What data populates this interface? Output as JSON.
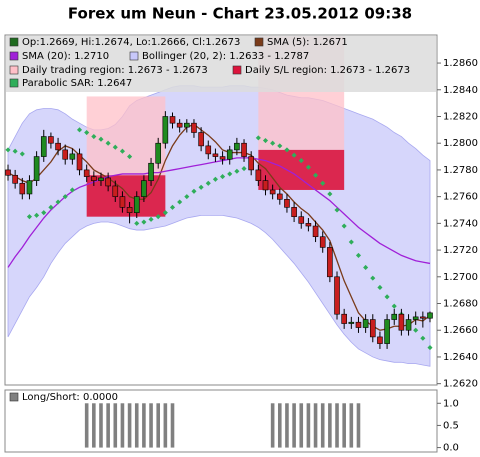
{
  "chart_data": [
    {
      "type": "candlestick",
      "title": "Forex um Neun - Chart 23.05.2012 09:38",
      "ohlc_label": "Op:1.2669, Hi:1.2674, Lo:1.2666, Cl:1.2673",
      "up_color": "#1f8a1f",
      "down_color": "#c81e1e",
      "legend_color": "#1f6a1f",
      "open": [
        1.278,
        1.2776,
        1.277,
        1.2762,
        1.2772,
        1.279,
        1.2805,
        1.28,
        1.2795,
        1.2788,
        1.2792,
        1.278,
        1.2775,
        1.2772,
        1.2774,
        1.2768,
        1.276,
        1.2752,
        1.2748,
        1.276,
        1.2772,
        1.2785,
        1.28,
        1.282,
        1.2815,
        1.2812,
        1.2815,
        1.2808,
        1.2798,
        1.2792,
        1.279,
        1.2788,
        1.2795,
        1.28,
        1.279,
        1.278,
        1.2772,
        1.2765,
        1.2762,
        1.2758,
        1.2752,
        1.2745,
        1.274,
        1.2738,
        1.273,
        1.2722,
        1.27,
        1.2672,
        1.2665,
        1.2666,
        1.2662,
        1.2668,
        1.2655,
        1.265,
        1.2668,
        1.2672,
        1.266,
        1.2668,
        1.267,
        1.2669
      ],
      "high": [
        1.2784,
        1.278,
        1.2774,
        1.2776,
        1.2794,
        1.281,
        1.2808,
        1.2804,
        1.2799,
        1.2796,
        1.2796,
        1.2784,
        1.2779,
        1.2778,
        1.2778,
        1.2772,
        1.2764,
        1.2756,
        1.2764,
        1.2776,
        1.2789,
        1.2804,
        1.2824,
        1.2823,
        1.2818,
        1.2818,
        1.2818,
        1.2812,
        1.2802,
        1.2796,
        1.2794,
        1.2798,
        1.2804,
        1.2803,
        1.2794,
        1.2784,
        1.2776,
        1.2769,
        1.2766,
        1.2762,
        1.2756,
        1.2749,
        1.2744,
        1.2742,
        1.2734,
        1.2726,
        1.2704,
        1.2676,
        1.267,
        1.267,
        1.2672,
        1.2672,
        1.2659,
        1.2672,
        1.2676,
        1.2676,
        1.2672,
        1.2674,
        1.2674,
        1.2674
      ],
      "low": [
        1.2772,
        1.2766,
        1.2758,
        1.2758,
        1.2768,
        1.2786,
        1.2796,
        1.2791,
        1.2784,
        1.2784,
        1.2776,
        1.2771,
        1.2768,
        1.2768,
        1.2764,
        1.2756,
        1.2748,
        1.274,
        1.2744,
        1.2756,
        1.2768,
        1.2781,
        1.2796,
        1.2811,
        1.2808,
        1.2808,
        1.2804,
        1.2794,
        1.2788,
        1.2786,
        1.2784,
        1.2784,
        1.2791,
        1.2786,
        1.2776,
        1.2768,
        1.2761,
        1.2758,
        1.2754,
        1.2748,
        1.2741,
        1.2736,
        1.2734,
        1.2726,
        1.2718,
        1.2696,
        1.2668,
        1.2661,
        1.2661,
        1.2658,
        1.2658,
        1.2651,
        1.2646,
        1.2646,
        1.2664,
        1.2656,
        1.2656,
        1.2664,
        1.2662,
        1.2666
      ],
      "close": [
        1.2776,
        1.277,
        1.2762,
        1.2772,
        1.279,
        1.2805,
        1.28,
        1.2795,
        1.2788,
        1.2792,
        1.278,
        1.2775,
        1.2772,
        1.2774,
        1.2768,
        1.276,
        1.2752,
        1.2748,
        1.276,
        1.2772,
        1.2785,
        1.28,
        1.282,
        1.2815,
        1.2812,
        1.2815,
        1.2808,
        1.2798,
        1.2792,
        1.279,
        1.2788,
        1.2795,
        1.28,
        1.279,
        1.278,
        1.2772,
        1.2765,
        1.2762,
        1.2758,
        1.2752,
        1.2745,
        1.274,
        1.2738,
        1.273,
        1.2722,
        1.27,
        1.2672,
        1.2665,
        1.2666,
        1.2662,
        1.2668,
        1.2655,
        1.265,
        1.2668,
        1.2672,
        1.266,
        1.2668,
        1.267,
        1.2669,
        1.2673
      ],
      "band": {
        "name": "Bollinger (20, 2): 1.2633 - 1.2787",
        "color": "#c8c8fa",
        "upper": [
          1.2795,
          1.2805,
          1.2815,
          1.2822,
          1.2825,
          1.2826,
          1.2826,
          1.2825,
          1.2822,
          1.2818,
          1.2815,
          1.2812,
          1.281,
          1.281,
          1.2811,
          1.2814,
          1.282,
          1.2828,
          1.2832,
          1.2834,
          1.2836,
          1.2838,
          1.284,
          1.2842,
          1.2843,
          1.2843,
          1.2843,
          1.2842,
          1.2842,
          1.2842,
          1.2842,
          1.2843,
          1.2843,
          1.2843,
          1.2842,
          1.2842,
          1.2841,
          1.284,
          1.2838,
          1.2836,
          1.2835,
          1.2834,
          1.2834,
          1.2833,
          1.2832,
          1.283,
          1.2828,
          1.2826,
          1.2824,
          1.2822,
          1.282,
          1.2818,
          1.2815,
          1.2812,
          1.2808,
          1.2805,
          1.28,
          1.2796,
          1.2791,
          1.2787
        ],
        "lower": [
          1.2655,
          1.2665,
          1.2675,
          1.2685,
          1.2692,
          1.27,
          1.271,
          1.2718,
          1.2725,
          1.273,
          1.2735,
          1.2738,
          1.274,
          1.2741,
          1.2741,
          1.274,
          1.2738,
          1.2736,
          1.2735,
          1.2735,
          1.2736,
          1.2737,
          1.2738,
          1.274,
          1.2742,
          1.2744,
          1.2745,
          1.2746,
          1.2746,
          1.2746,
          1.2746,
          1.2745,
          1.2744,
          1.2742,
          1.274,
          1.2737,
          1.2733,
          1.2728,
          1.2722,
          1.2716,
          1.271,
          1.2703,
          1.2696,
          1.2688,
          1.268,
          1.2672,
          1.2664,
          1.2657,
          1.2651,
          1.2646,
          1.2643,
          1.264,
          1.2638,
          1.2637,
          1.2636,
          1.2636,
          1.2635,
          1.2635,
          1.2634,
          1.2633
        ]
      },
      "regions": [
        {
          "name": "Daily trading region: 1.2673 - 1.2673",
          "color": "#ffc0c8",
          "areas": [
            {
              "start": 11,
              "end": 22,
              "low": 1.2776,
              "high": 1.2835
            },
            {
              "start": 35,
              "end": 47,
              "low": 1.2795,
              "high": 1.288
            }
          ]
        },
        {
          "name": "Daily S/L region: 1.2673 - 1.2673",
          "color": "#dc143c",
          "areas": [
            {
              "start": 11,
              "end": 22,
              "low": 1.2745,
              "high": 1.2776
            },
            {
              "start": 35,
              "end": 47,
              "low": 1.2765,
              "high": 1.2795
            }
          ]
        }
      ],
      "series": [
        {
          "name": "SMA (5): 1.2671",
          "color": "#7a3b1a",
          "values": [
            1.2778,
            1.2775,
            1.2772,
            1.277,
            1.2774,
            1.278,
            1.2786,
            1.2794,
            1.2798,
            1.2796,
            1.2791,
            1.2786,
            1.278,
            1.2777,
            1.2774,
            1.277,
            1.2766,
            1.276,
            1.2758,
            1.2758,
            1.2763,
            1.2773,
            1.2787,
            1.2798,
            1.2806,
            1.2812,
            1.2814,
            1.281,
            1.2806,
            1.2801,
            1.2795,
            1.2793,
            1.2793,
            1.2793,
            1.2791,
            1.2785,
            1.2781,
            1.2774,
            1.2767,
            1.2762,
            1.2756,
            1.2751,
            1.2747,
            1.2741,
            1.2735,
            1.2727,
            1.2712,
            1.2697,
            1.2685,
            1.2673,
            1.2667,
            1.2663,
            1.266,
            1.2661,
            1.2663,
            1.2663,
            1.2664,
            1.2668,
            1.2667,
            1.2671
          ]
        },
        {
          "name": "SMA (20): 1.2710",
          "color": "#a020d8",
          "values": [
            1.2707,
            1.2715,
            1.2722,
            1.273,
            1.2737,
            1.2744,
            1.275,
            1.2755,
            1.276,
            1.2764,
            1.2767,
            1.2769,
            1.2771,
            1.2773,
            1.2775,
            1.2776,
            1.2777,
            1.2777,
            1.2777,
            1.2777,
            1.2778,
            1.2778,
            1.2779,
            1.278,
            1.2781,
            1.2782,
            1.2783,
            1.2784,
            1.2785,
            1.2786,
            1.2787,
            1.2788,
            1.2789,
            1.2789,
            1.2789,
            1.2788,
            1.2787,
            1.2785,
            1.2783,
            1.278,
            1.2777,
            1.2773,
            1.2769,
            1.2765,
            1.2761,
            1.2757,
            1.2752,
            1.2747,
            1.2742,
            1.2737,
            1.2733,
            1.2729,
            1.2725,
            1.2722,
            1.2719,
            1.2716,
            1.2714,
            1.2712,
            1.2711,
            1.271
          ]
        }
      ],
      "sar": {
        "name": "Parabolic SAR: 1.2647",
        "color": "#2fae5a",
        "values": [
          1.2795,
          1.2794,
          1.2792,
          1.2745,
          1.2746,
          1.2748,
          1.2752,
          1.2756,
          1.276,
          1.2765,
          1.281,
          1.2808,
          1.2805,
          1.2803,
          1.28,
          1.2797,
          1.2794,
          1.279,
          1.274,
          1.2741,
          1.2743,
          1.2745,
          1.2748,
          1.2752,
          1.2756,
          1.276,
          1.2764,
          1.2767,
          1.277,
          1.2773,
          1.2775,
          1.2777,
          1.2779,
          1.2781,
          1.2783,
          1.2804,
          1.2802,
          1.28,
          1.2798,
          1.2795,
          1.2791,
          1.2787,
          1.2782,
          1.2776,
          1.277,
          1.2762,
          1.275,
          1.2738,
          1.2726,
          1.2716,
          1.2707,
          1.2699,
          1.2692,
          1.2685,
          1.2678,
          1.2672,
          1.2666,
          1.266,
          1.2654,
          1.2647
        ]
      },
      "ylim": [
        1.2619,
        1.2881
      ],
      "yticks": [
        {
          "value": 1.262,
          "label": "1.2620"
        },
        {
          "value": 1.264,
          "label": "1.2640"
        },
        {
          "value": 1.266,
          "label": "1.2660"
        },
        {
          "value": 1.268,
          "label": "1.2680"
        },
        {
          "value": 1.27,
          "label": "1.2700"
        },
        {
          "value": 1.272,
          "label": "1.2720"
        },
        {
          "value": 1.274,
          "label": "1.2740"
        },
        {
          "value": 1.276,
          "label": "1.2760"
        },
        {
          "value": 1.278,
          "label": "1.2780"
        },
        {
          "value": 1.28,
          "label": "1.2800"
        },
        {
          "value": 1.282,
          "label": "1.2820"
        },
        {
          "value": 1.284,
          "label": "1.2840"
        },
        {
          "value": 1.286,
          "label": "1.2860"
        }
      ]
    },
    {
      "type": "bar",
      "series": [
        {
          "name": "Long/Short: 0.0000",
          "color": "#808080",
          "values": [
            0,
            0,
            0,
            0,
            0,
            0,
            0,
            0,
            0,
            0,
            0,
            1,
            1,
            1,
            1,
            1,
            1,
            1,
            1,
            1,
            1,
            1,
            1,
            1,
            0,
            0,
            0,
            0,
            0,
            0,
            0,
            0,
            0,
            0,
            0,
            0,
            0,
            1,
            1,
            1,
            1,
            1,
            1,
            1,
            1,
            1,
            1,
            1,
            1,
            1,
            0,
            0,
            0,
            0,
            0,
            0,
            0,
            0,
            0,
            0
          ]
        }
      ],
      "ylim": [
        -0.1,
        1.3
      ],
      "yticks": [
        {
          "value": 0,
          "label": "0.0"
        },
        {
          "value": 0.5,
          "label": "0.5"
        },
        {
          "value": 1,
          "label": "1.0"
        }
      ]
    }
  ]
}
